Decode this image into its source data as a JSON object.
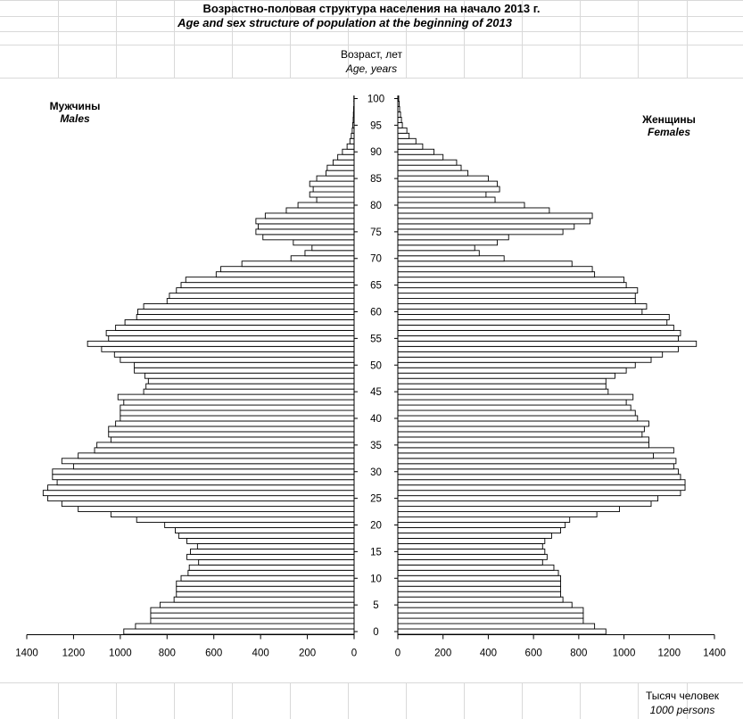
{
  "header": {
    "title": "Возрастно-половая структура населения на начало 2013 г.",
    "subtitle": "Age and sex structure of population at the beginning of 2013"
  },
  "age_axis": {
    "label_ru": "Возраст, лет",
    "label_en": "Age, years"
  },
  "males_label": {
    "ru": "Мужчины",
    "en": "Males"
  },
  "females_label": {
    "ru": "Женщины",
    "en": "Females"
  },
  "unit_label": {
    "ru": "Тысяч человек",
    "en": "1000 persons"
  },
  "colors": {
    "bar_fill": "#ffffff",
    "bar_stroke": "#000000",
    "grid": "#d9d9d9"
  },
  "chart_data": {
    "type": "bar",
    "orientation": "horizontal",
    "categories_label": "Возраст, лет / Age, years",
    "age_ticks": [
      0,
      5,
      10,
      15,
      20,
      25,
      30,
      35,
      40,
      45,
      50,
      55,
      60,
      65,
      70,
      75,
      80,
      85,
      90,
      95,
      100
    ],
    "value_ticks": [
      0,
      200,
      400,
      600,
      800,
      1000,
      1200,
      1400
    ],
    "xlim": [
      0,
      1400
    ],
    "ylim": [
      0,
      100
    ],
    "series": [
      {
        "name": "Мужчины / Males",
        "ages": [
          0,
          1,
          2,
          3,
          4,
          5,
          6,
          7,
          8,
          9,
          10,
          11,
          12,
          13,
          14,
          15,
          16,
          17,
          18,
          19,
          20,
          21,
          22,
          23,
          24,
          25,
          26,
          27,
          28,
          29,
          30,
          31,
          32,
          33,
          34,
          35,
          36,
          37,
          38,
          39,
          40,
          41,
          42,
          43,
          44,
          45,
          46,
          47,
          48,
          49,
          50,
          51,
          52,
          53,
          54,
          55,
          56,
          57,
          58,
          59,
          60,
          61,
          62,
          63,
          64,
          65,
          66,
          67,
          68,
          69,
          70,
          71,
          72,
          73,
          74,
          75,
          76,
          77,
          78,
          79,
          80,
          81,
          82,
          83,
          84,
          85,
          86,
          87,
          88,
          89,
          90,
          91,
          92,
          93,
          94,
          95,
          96,
          97,
          98,
          99,
          100
        ],
        "values": [
          985,
          935,
          870,
          870,
          870,
          830,
          770,
          760,
          760,
          760,
          740,
          710,
          705,
          665,
          715,
          700,
          670,
          715,
          750,
          765,
          810,
          930,
          1040,
          1180,
          1250,
          1310,
          1330,
          1310,
          1270,
          1290,
          1290,
          1200,
          1250,
          1180,
          1110,
          1100,
          1040,
          1050,
          1050,
          1020,
          1000,
          1000,
          1000,
          985,
          1010,
          900,
          890,
          880,
          895,
          940,
          940,
          1000,
          1025,
          1080,
          1140,
          1050,
          1060,
          1020,
          980,
          930,
          925,
          900,
          800,
          790,
          760,
          740,
          720,
          590,
          570,
          480,
          270,
          210,
          180,
          260,
          390,
          420,
          410,
          420,
          380,
          290,
          240,
          160,
          190,
          175,
          190,
          160,
          120,
          115,
          90,
          70,
          50,
          30,
          18,
          12,
          8,
          6,
          4,
          3,
          2,
          1,
          1
        ]
      },
      {
        "name": "Женщины / Females",
        "ages": [
          0,
          1,
          2,
          3,
          4,
          5,
          6,
          7,
          8,
          9,
          10,
          11,
          12,
          13,
          14,
          15,
          16,
          17,
          18,
          19,
          20,
          21,
          22,
          23,
          24,
          25,
          26,
          27,
          28,
          29,
          30,
          31,
          32,
          33,
          34,
          35,
          36,
          37,
          38,
          39,
          40,
          41,
          42,
          43,
          44,
          45,
          46,
          47,
          48,
          49,
          50,
          51,
          52,
          53,
          54,
          55,
          56,
          57,
          58,
          59,
          60,
          61,
          62,
          63,
          64,
          65,
          66,
          67,
          68,
          69,
          70,
          71,
          72,
          73,
          74,
          75,
          76,
          77,
          78,
          79,
          80,
          81,
          82,
          83,
          84,
          85,
          86,
          87,
          88,
          89,
          90,
          91,
          92,
          93,
          94,
          95,
          96,
          97,
          98,
          99,
          100
        ],
        "values": [
          920,
          870,
          820,
          820,
          820,
          770,
          730,
          720,
          720,
          720,
          720,
          710,
          690,
          640,
          660,
          650,
          640,
          650,
          680,
          720,
          740,
          760,
          880,
          980,
          1120,
          1150,
          1250,
          1270,
          1270,
          1250,
          1240,
          1220,
          1230,
          1130,
          1220,
          1110,
          1110,
          1080,
          1090,
          1110,
          1060,
          1050,
          1030,
          1010,
          1040,
          930,
          920,
          920,
          960,
          1010,
          1050,
          1120,
          1170,
          1240,
          1320,
          1240,
          1250,
          1220,
          1190,
          1200,
          1080,
          1100,
          1050,
          1050,
          1060,
          1010,
          1000,
          870,
          860,
          770,
          470,
          360,
          340,
          440,
          490,
          730,
          780,
          850,
          860,
          670,
          560,
          430,
          390,
          450,
          440,
          400,
          310,
          280,
          260,
          200,
          160,
          110,
          80,
          50,
          40,
          20,
          16,
          12,
          8,
          6,
          4
        ]
      }
    ]
  }
}
